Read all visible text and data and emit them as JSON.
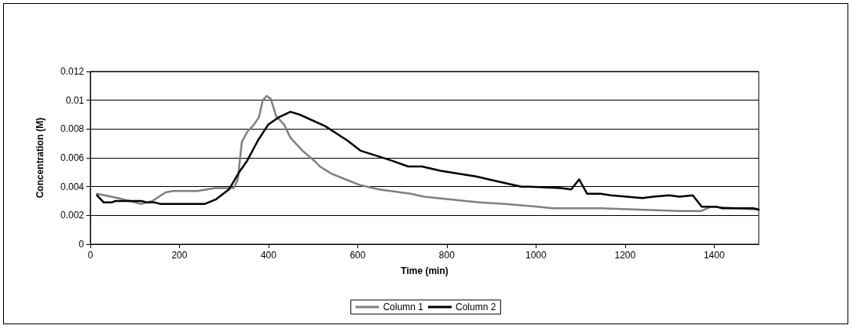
{
  "chart_data": {
    "type": "line",
    "xlabel": "Time (min)",
    "ylabel": "Concentration (M)",
    "xlim": [
      0,
      1500
    ],
    "xticks": [
      0,
      200,
      400,
      600,
      800,
      1000,
      1200,
      1400
    ],
    "ylim": [
      0,
      0.012
    ],
    "yticks": [
      0,
      0.002,
      0.004,
      0.006,
      0.008,
      0.01,
      0.012
    ],
    "grid": "y",
    "legend": "bottom",
    "marker": "none",
    "line_style": "solid",
    "series": [
      {
        "name": "Column 1",
        "color": "#808080",
        "x": [
          15,
          62,
          115,
          139,
          169,
          186,
          240,
          281,
          322,
          331,
          340,
          352,
          367,
          378,
          387,
          396,
          405,
          417,
          435,
          449,
          476,
          506,
          515,
          541,
          573,
          606,
          648,
          719,
          749,
          813,
          873,
          932,
          1003,
          1038,
          1145,
          1322,
          1370,
          1393,
          1500
        ],
        "values": [
          0.0035,
          0.0032,
          0.0028,
          0.003,
          0.0036,
          0.0037,
          0.0037,
          0.0039,
          0.0039,
          0.0045,
          0.0071,
          0.0078,
          0.0083,
          0.0088,
          0.01,
          0.0103,
          0.0101,
          0.0089,
          0.0083,
          0.0074,
          0.0065,
          0.0057,
          0.0054,
          0.0049,
          0.0045,
          0.0041,
          0.0038,
          0.0035,
          0.0033,
          0.0031,
          0.0029,
          0.0028,
          0.0026,
          0.0025,
          0.0025,
          0.0023,
          0.0023,
          0.0026,
          0.0024
        ]
      },
      {
        "name": "Column 2",
        "color": "#000000",
        "x": [
          15,
          30,
          48,
          56,
          115,
          127,
          145,
          157,
          181,
          257,
          281,
          311,
          334,
          352,
          376,
          399,
          422,
          449,
          470,
          527,
          577,
          606,
          677,
          713,
          744,
          786,
          866,
          908,
          967,
          985,
          1056,
          1079,
          1097,
          1115,
          1145,
          1168,
          1204,
          1239,
          1263,
          1299,
          1322,
          1352,
          1372,
          1405,
          1417,
          1488,
          1500
        ],
        "values": [
          0.0034,
          0.0029,
          0.0029,
          0.003,
          0.003,
          0.0029,
          0.0029,
          0.0028,
          0.0028,
          0.0028,
          0.0031,
          0.0038,
          0.005,
          0.0058,
          0.0072,
          0.0083,
          0.0088,
          0.0092,
          0.009,
          0.0082,
          0.0072,
          0.0065,
          0.0058,
          0.0054,
          0.0054,
          0.0051,
          0.0047,
          0.0044,
          0.004,
          0.004,
          0.0039,
          0.0038,
          0.0045,
          0.0035,
          0.0035,
          0.0034,
          0.0033,
          0.0032,
          0.0033,
          0.0034,
          0.0033,
          0.0034,
          0.0026,
          0.0026,
          0.0025,
          0.0025,
          0.0024
        ]
      }
    ]
  }
}
